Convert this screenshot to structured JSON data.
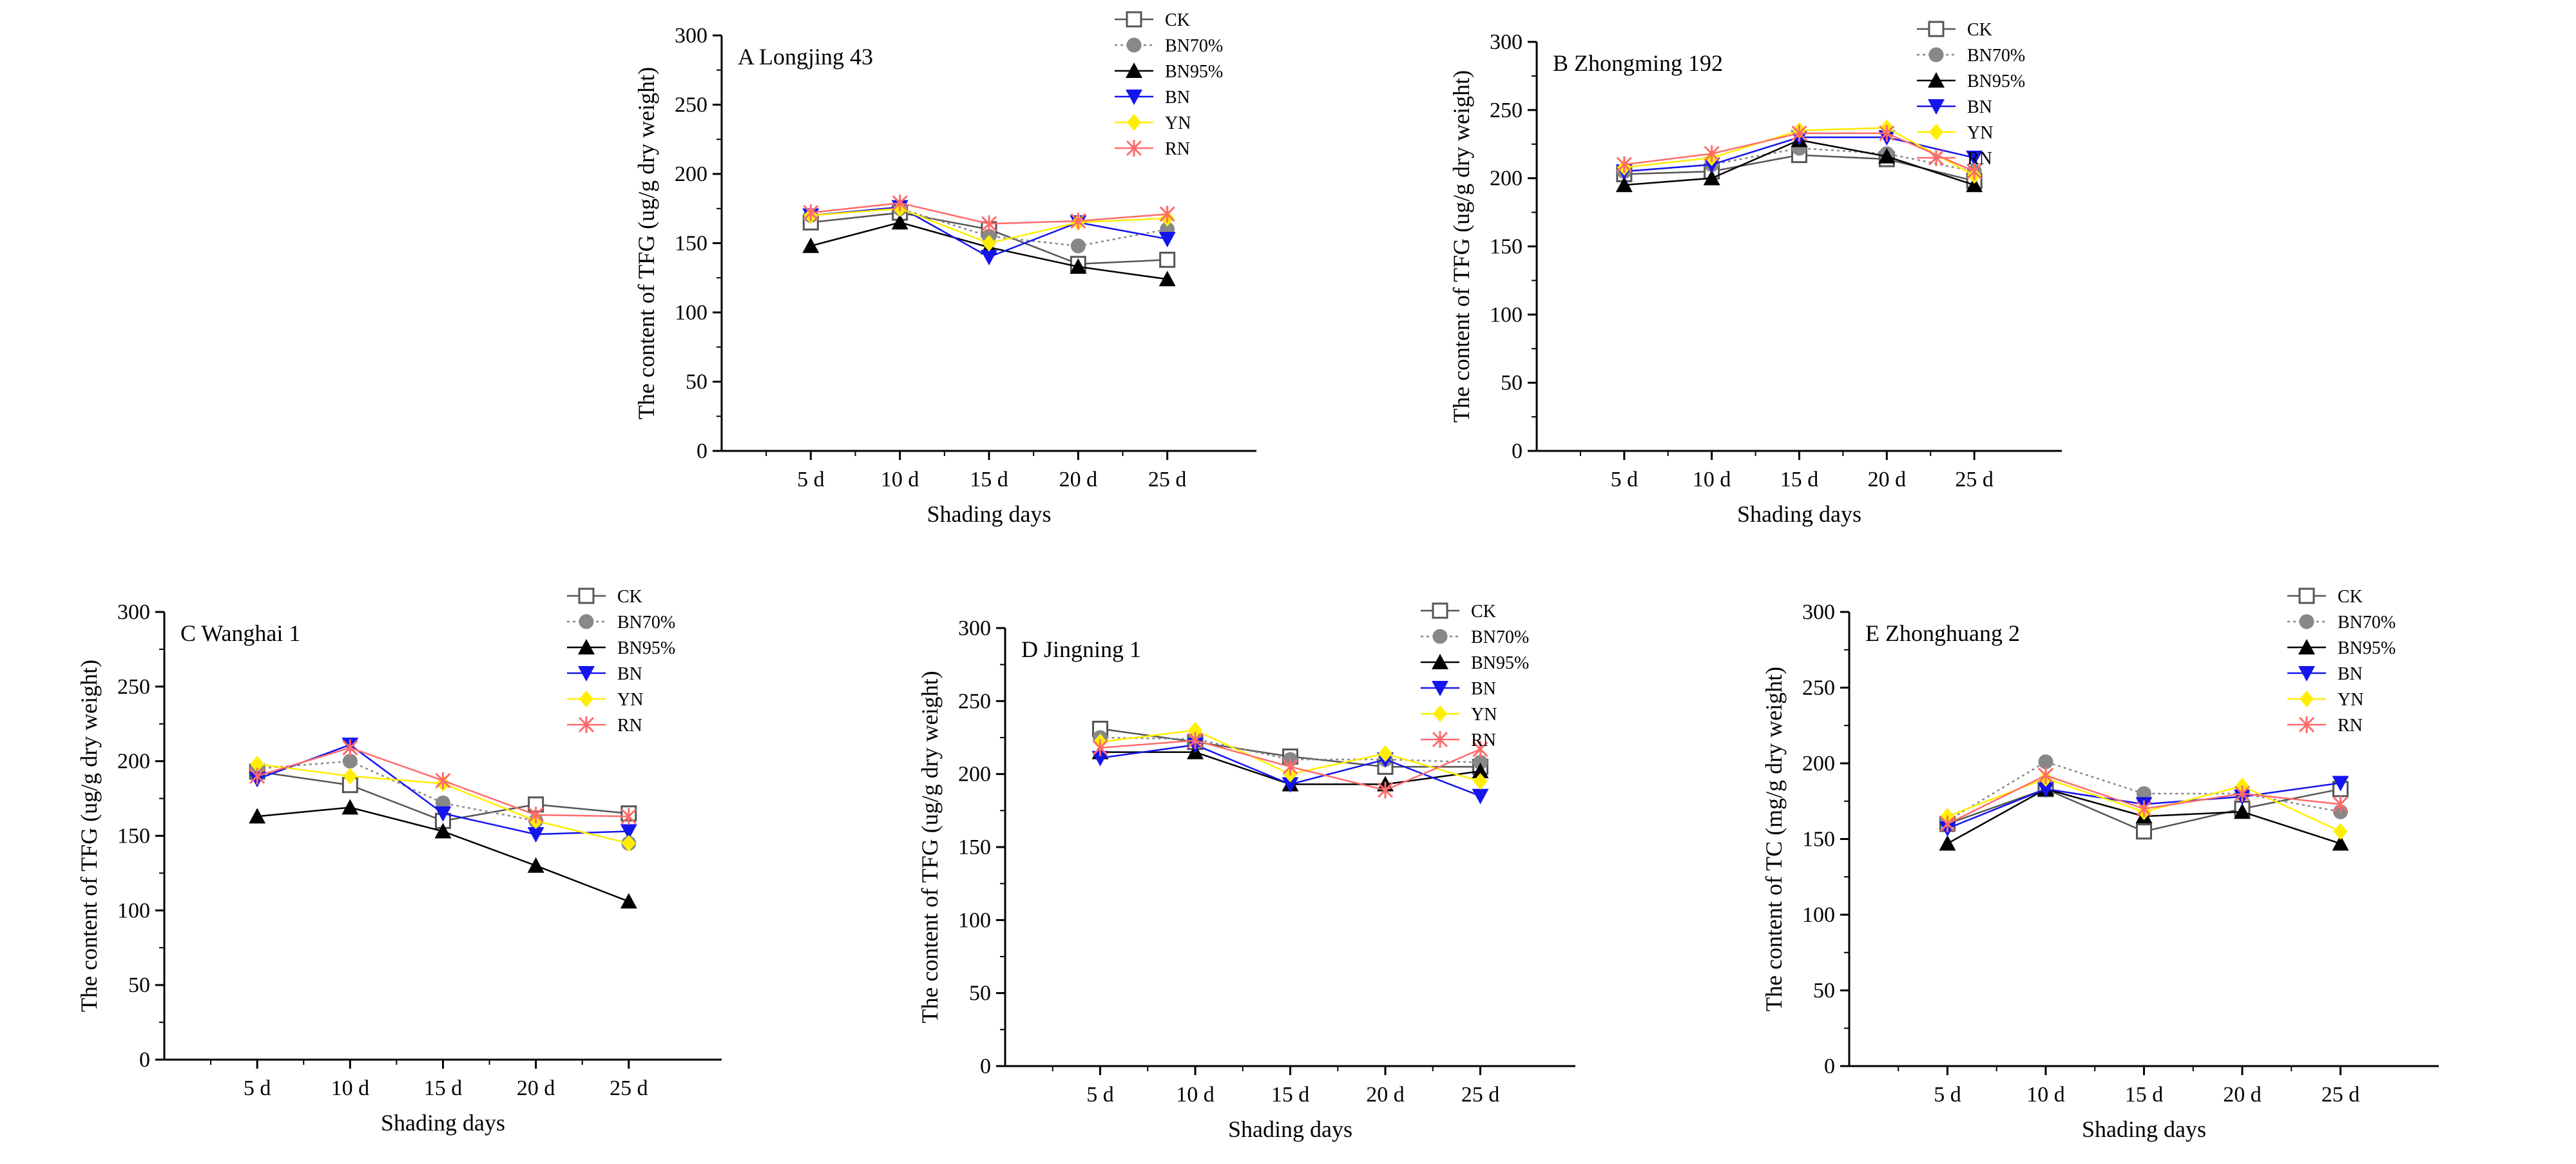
{
  "figure": {
    "description_layout": "five line charts",
    "colors": {
      "CK": "#555555",
      "BN70%": "#888888",
      "BN95%": "#000000",
      "BN": "#1515ee",
      "YN": "#ffee00",
      "RN": "#ff6b6b",
      "axis": "#000000"
    },
    "legend_entries": [
      "CK",
      "BN70%",
      "BN95%",
      "BN",
      "YN",
      "RN"
    ]
  },
  "chart_data": [
    {
      "id": "A",
      "type": "line",
      "title": "A Longjing 43",
      "xlabel": "Shading days",
      "ylabel": "The content of TFG (ug/g dry weight)",
      "categories": [
        "5 d",
        "10 d",
        "15 d",
        "20 d",
        "25 d"
      ],
      "yticks": [
        "0",
        "50",
        "100",
        "150",
        "200",
        "250",
        "300"
      ],
      "ylim": [
        0,
        300
      ],
      "legend_position": "top-right",
      "series": [
        {
          "name": "CK",
          "values": [
            165,
            172,
            160,
            135,
            138
          ]
        },
        {
          "name": "BN70%",
          "values": [
            170,
            175,
            155,
            148,
            160
          ]
        },
        {
          "name": "BN95%",
          "values": [
            148,
            165,
            147,
            133,
            124
          ]
        },
        {
          "name": "BN",
          "values": [
            170,
            176,
            140,
            165,
            153
          ]
        },
        {
          "name": "YN",
          "values": [
            170,
            175,
            150,
            165,
            168
          ]
        },
        {
          "name": "RN",
          "values": [
            172,
            179,
            164,
            166,
            171
          ]
        }
      ]
    },
    {
      "id": "B",
      "type": "line",
      "title": "B  Zhongming 192",
      "xlabel": "Shading days",
      "ylabel": "The content of TFG (ug/g dry weight)",
      "categories": [
        "5 d",
        "10 d",
        "15 d",
        "20 d",
        "25 d"
      ],
      "yticks": [
        "0",
        "50",
        "100",
        "150",
        "200",
        "250",
        "300"
      ],
      "ylim": [
        0,
        300
      ],
      "legend_position": "top-right",
      "series": [
        {
          "name": "CK",
          "values": [
            203,
            205,
            217,
            214,
            198
          ]
        },
        {
          "name": "BN70%",
          "values": [
            205,
            210,
            222,
            218,
            205
          ]
        },
        {
          "name": "BN95%",
          "values": [
            195,
            200,
            228,
            216,
            195
          ]
        },
        {
          "name": "BN",
          "values": [
            205,
            210,
            230,
            230,
            215
          ]
        },
        {
          "name": "YN",
          "values": [
            208,
            215,
            235,
            237,
            202
          ]
        },
        {
          "name": "RN",
          "values": [
            210,
            218,
            233,
            233,
            205
          ]
        }
      ]
    },
    {
      "id": "C",
      "type": "line",
      "title": "C  Wanghai 1",
      "xlabel": "Shading days",
      "ylabel": "The content of TFG (ug/g dry weight)",
      "categories": [
        "5 d",
        "10 d",
        "15 d",
        "20 d",
        "25 d"
      ],
      "yticks": [
        "0",
        "50",
        "100",
        "150",
        "200",
        "250",
        "300"
      ],
      "ylim": [
        0,
        300
      ],
      "legend_position": "top-right",
      "series": [
        {
          "name": "CK",
          "values": [
            193,
            184,
            160,
            171,
            165
          ]
        },
        {
          "name": "BN70%",
          "values": [
            195,
            200,
            172,
            160,
            145
          ]
        },
        {
          "name": "BN95%",
          "values": [
            163,
            169,
            153,
            130,
            106
          ]
        },
        {
          "name": "BN",
          "values": [
            188,
            211,
            165,
            151,
            153
          ]
        },
        {
          "name": "YN",
          "values": [
            198,
            190,
            185,
            160,
            145
          ]
        },
        {
          "name": "RN",
          "values": [
            190,
            209,
            187,
            164,
            163
          ]
        }
      ]
    },
    {
      "id": "D",
      "type": "line",
      "title": "D  Jingning 1",
      "xlabel": "Shading days",
      "ylabel": "The content of TFG (ug/g dry weight)",
      "categories": [
        "5 d",
        "10 d",
        "15 d",
        "20 d",
        "25 d"
      ],
      "yticks": [
        "0",
        "50",
        "100",
        "150",
        "200",
        "250",
        "300"
      ],
      "ylim": [
        0,
        300
      ],
      "legend_position": "top-right",
      "series": [
        {
          "name": "CK",
          "values": [
            231,
            222,
            212,
            205,
            205
          ]
        },
        {
          "name": "BN70%",
          "values": [
            225,
            224,
            210,
            210,
            208
          ]
        },
        {
          "name": "BN95%",
          "values": [
            215,
            215,
            193,
            193,
            202
          ]
        },
        {
          "name": "BN",
          "values": [
            211,
            220,
            193,
            210,
            185
          ]
        },
        {
          "name": "YN",
          "values": [
            222,
            230,
            200,
            214,
            195
          ]
        },
        {
          "name": "RN",
          "values": [
            218,
            223,
            205,
            189,
            217
          ]
        }
      ]
    },
    {
      "id": "E",
      "type": "line",
      "title": "E  Zhonghuang 2",
      "xlabel": "Shading days",
      "ylabel": "The content of TC (mg/g dry weight)",
      "categories": [
        "5 d",
        "10 d",
        "15 d",
        "20 d",
        "25 d"
      ],
      "yticks": [
        "0",
        "50",
        "100",
        "150",
        "200",
        "250",
        "300"
      ],
      "ylim": [
        0,
        300
      ],
      "legend_position": "top-right",
      "series": [
        {
          "name": "CK",
          "values": [
            160,
            183,
            155,
            170,
            183
          ]
        },
        {
          "name": "BN70%",
          "values": [
            162,
            201,
            180,
            180,
            168
          ]
        },
        {
          "name": "BN95%",
          "values": [
            147,
            183,
            165,
            168,
            147
          ]
        },
        {
          "name": "BN",
          "values": [
            157,
            183,
            173,
            178,
            187
          ]
        },
        {
          "name": "YN",
          "values": [
            165,
            190,
            168,
            185,
            155
          ]
        },
        {
          "name": "RN",
          "values": [
            160,
            192,
            170,
            180,
            173
          ]
        }
      ]
    }
  ]
}
